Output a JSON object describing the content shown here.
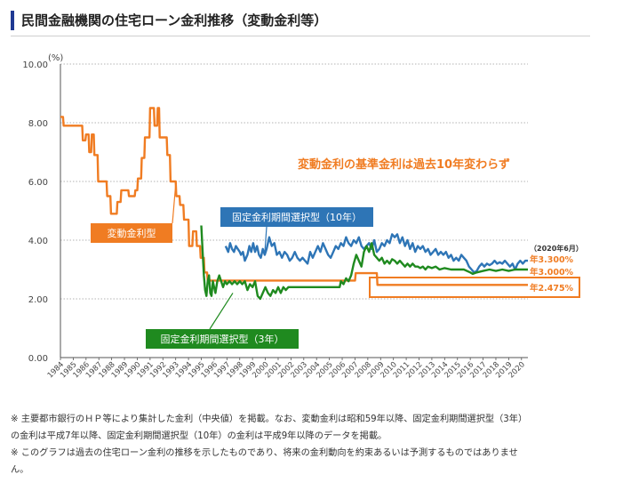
{
  "header": {
    "title": "民間金融機関の住宅ローン金利推移（変動金利等）"
  },
  "notes": [
    "※ 主要都市銀行のＨＰ等により集計した金利（中央値）を掲載。なお、変動金利は昭和59年以降、固定金利期間選択型（3年）",
    "の金利は平成7年以降、固定金利期間選択型（10年）の金利は平成9年以降のデータを掲載。",
    "※ このグラフは過去の住宅ローン金利の推移を示したものであり、将来の金利動向を約束あるいは予測するものではありませ",
    "ん。"
  ],
  "colors": {
    "variable": "#f07c22",
    "fixed10": "#2e75b6",
    "fixed3": "#1f8a1f",
    "grid": "#9a9a9a",
    "header_bar": "#1f3a93"
  },
  "chart_data": {
    "type": "line",
    "unit": "(%)",
    "ylim": [
      0,
      10
    ],
    "yticks": [
      "0.00",
      "2.00",
      "4.00",
      "6.00",
      "8.00",
      "10.00"
    ],
    "xlim": [
      1984,
      2020.5
    ],
    "xticks": [
      "1984",
      "1985",
      "1986",
      "1987",
      "1988",
      "1989",
      "1990",
      "1991",
      "1992",
      "1993",
      "1994",
      "1995",
      "1996",
      "1997",
      "1998",
      "1999",
      "2000",
      "2001",
      "2002",
      "2003",
      "2004",
      "2005",
      "2006",
      "2007",
      "2008",
      "2009",
      "2010",
      "2011",
      "2012",
      "2013",
      "2014",
      "2015",
      "2016",
      "2017",
      "2018",
      "2019",
      "2020"
    ],
    "annotation": "変動金利の基準金利は過去10年変わらず",
    "date_label": "（2020年6月）",
    "series": [
      {
        "name": "変動金利型",
        "end_label": "年2.475%",
        "points": [
          [
            1984.0,
            8.2
          ],
          [
            1984.2,
            8.2
          ],
          [
            1984.25,
            7.9
          ],
          [
            1985.7,
            7.9
          ],
          [
            1985.75,
            7.4
          ],
          [
            1985.95,
            7.4
          ],
          [
            1986.0,
            7.6
          ],
          [
            1986.2,
            7.6
          ],
          [
            1986.25,
            7.0
          ],
          [
            1986.4,
            7.0
          ],
          [
            1986.45,
            7.6
          ],
          [
            1986.6,
            7.6
          ],
          [
            1986.65,
            6.9
          ],
          [
            1986.9,
            6.9
          ],
          [
            1986.95,
            6.0
          ],
          [
            1987.3,
            6.0
          ],
          [
            1987.35,
            6.0
          ],
          [
            1987.6,
            6.0
          ],
          [
            1987.65,
            5.5
          ],
          [
            1987.9,
            5.5
          ],
          [
            1987.95,
            4.9
          ],
          [
            1988.4,
            4.9
          ],
          [
            1988.45,
            5.3
          ],
          [
            1988.7,
            5.3
          ],
          [
            1988.75,
            5.7
          ],
          [
            1989.3,
            5.7
          ],
          [
            1989.35,
            5.5
          ],
          [
            1989.8,
            5.5
          ],
          [
            1989.85,
            5.7
          ],
          [
            1990.0,
            5.7
          ],
          [
            1990.05,
            6.1
          ],
          [
            1990.3,
            6.1
          ],
          [
            1990.35,
            6.8
          ],
          [
            1990.55,
            6.8
          ],
          [
            1990.6,
            7.5
          ],
          [
            1990.95,
            7.5
          ],
          [
            1991.0,
            8.5
          ],
          [
            1991.3,
            8.5
          ],
          [
            1991.35,
            7.9
          ],
          [
            1991.55,
            7.9
          ],
          [
            1991.6,
            8.5
          ],
          [
            1991.7,
            8.5
          ],
          [
            1991.75,
            7.5
          ],
          [
            1992.3,
            7.5
          ],
          [
            1992.35,
            6.9
          ],
          [
            1992.55,
            6.9
          ],
          [
            1992.6,
            6.0
          ],
          [
            1993.0,
            6.0
          ],
          [
            1993.05,
            5.5
          ],
          [
            1993.3,
            5.5
          ],
          [
            1993.35,
            5.2
          ],
          [
            1993.6,
            5.2
          ],
          [
            1993.65,
            4.7
          ],
          [
            1994.0,
            4.7
          ],
          [
            1994.05,
            3.8
          ],
          [
            1994.3,
            3.8
          ],
          [
            1994.35,
            4.3
          ],
          [
            1994.6,
            4.3
          ],
          [
            1994.65,
            3.8
          ],
          [
            1994.9,
            3.8
          ],
          [
            1994.95,
            3.4
          ],
          [
            1995.2,
            3.4
          ],
          [
            1995.25,
            2.9
          ],
          [
            1995.45,
            2.9
          ],
          [
            1995.5,
            2.625
          ],
          [
            2007.0,
            2.625
          ],
          [
            2007.05,
            2.875
          ],
          [
            2008.7,
            2.875
          ],
          [
            2008.75,
            2.475
          ],
          [
            2020.5,
            2.475
          ]
        ]
      },
      {
        "name": "固定金利期間選択型（10年）",
        "end_label": "年3.300%",
        "points": [
          [
            1996.9,
            3.8
          ],
          [
            1997.0,
            3.7
          ],
          [
            1997.1,
            3.6
          ],
          [
            1997.25,
            3.9
          ],
          [
            1997.4,
            3.7
          ],
          [
            1997.55,
            3.6
          ],
          [
            1997.7,
            3.8
          ],
          [
            1997.85,
            3.7
          ],
          [
            1998.0,
            3.6
          ],
          [
            1998.1,
            3.5
          ],
          [
            1998.25,
            3.6
          ],
          [
            1998.4,
            3.3
          ],
          [
            1998.6,
            3.5
          ],
          [
            1998.75,
            3.8
          ],
          [
            1998.9,
            3.6
          ],
          [
            1999.05,
            3.9
          ],
          [
            1999.2,
            3.6
          ],
          [
            1999.35,
            3.8
          ],
          [
            1999.5,
            3.5
          ],
          [
            1999.65,
            3.4
          ],
          [
            1999.8,
            3.7
          ],
          [
            1999.95,
            3.5
          ],
          [
            2000.1,
            3.7
          ],
          [
            2000.3,
            4.1
          ],
          [
            2000.5,
            3.8
          ],
          [
            2000.7,
            3.9
          ],
          [
            2000.9,
            3.5
          ],
          [
            2001.1,
            3.6
          ],
          [
            2001.3,
            3.4
          ],
          [
            2001.5,
            3.6
          ],
          [
            2001.7,
            3.5
          ],
          [
            2001.9,
            3.3
          ],
          [
            2002.1,
            3.4
          ],
          [
            2002.3,
            3.6
          ],
          [
            2002.5,
            3.4
          ],
          [
            2002.7,
            3.3
          ],
          [
            2002.9,
            3.4
          ],
          [
            2003.1,
            3.3
          ],
          [
            2003.3,
            3.2
          ],
          [
            2003.5,
            3.6
          ],
          [
            2003.7,
            3.4
          ],
          [
            2003.9,
            3.6
          ],
          [
            2004.1,
            3.8
          ],
          [
            2004.3,
            3.6
          ],
          [
            2004.5,
            3.9
          ],
          [
            2004.7,
            3.7
          ],
          [
            2004.9,
            3.5
          ],
          [
            2005.1,
            3.4
          ],
          [
            2005.3,
            3.6
          ],
          [
            2005.5,
            3.8
          ],
          [
            2005.7,
            3.7
          ],
          [
            2005.9,
            3.9
          ],
          [
            2006.1,
            3.8
          ],
          [
            2006.3,
            4.1
          ],
          [
            2006.5,
            3.9
          ],
          [
            2006.7,
            3.8
          ],
          [
            2006.9,
            4.0
          ],
          [
            2007.1,
            3.9
          ],
          [
            2007.3,
            4.1
          ],
          [
            2007.5,
            3.8
          ],
          [
            2007.7,
            3.7
          ],
          [
            2007.9,
            3.8
          ],
          [
            2008.1,
            3.9
          ],
          [
            2008.3,
            3.7
          ],
          [
            2008.5,
            4.0
          ],
          [
            2008.7,
            3.6
          ],
          [
            2008.9,
            3.7
          ],
          [
            2009.1,
            3.9
          ],
          [
            2009.3,
            3.8
          ],
          [
            2009.5,
            4.0
          ],
          [
            2009.7,
            3.9
          ],
          [
            2009.9,
            4.2
          ],
          [
            2010.1,
            4.1
          ],
          [
            2010.3,
            4.2
          ],
          [
            2010.5,
            3.9
          ],
          [
            2010.7,
            4.1
          ],
          [
            2010.9,
            3.8
          ],
          [
            2011.1,
            4.0
          ],
          [
            2011.3,
            3.7
          ],
          [
            2011.5,
            3.9
          ],
          [
            2011.7,
            3.6
          ],
          [
            2011.9,
            3.8
          ],
          [
            2012.1,
            3.7
          ],
          [
            2012.3,
            3.8
          ],
          [
            2012.5,
            3.6
          ],
          [
            2012.7,
            3.7
          ],
          [
            2012.9,
            3.5
          ],
          [
            2013.1,
            3.6
          ],
          [
            2013.3,
            3.7
          ],
          [
            2013.5,
            3.5
          ],
          [
            2013.7,
            3.6
          ],
          [
            2013.9,
            3.5
          ],
          [
            2014.1,
            3.6
          ],
          [
            2014.3,
            3.4
          ],
          [
            2014.5,
            3.5
          ],
          [
            2014.7,
            3.3
          ],
          [
            2014.9,
            3.4
          ],
          [
            2015.1,
            3.3
          ],
          [
            2015.3,
            3.5
          ],
          [
            2015.5,
            3.4
          ],
          [
            2015.7,
            3.3
          ],
          [
            2015.9,
            3.1
          ],
          [
            2016.1,
            3.0
          ],
          [
            2016.3,
            2.9
          ],
          [
            2016.5,
            2.95
          ],
          [
            2016.7,
            3.1
          ],
          [
            2016.9,
            3.2
          ],
          [
            2017.1,
            3.1
          ],
          [
            2017.3,
            3.2
          ],
          [
            2017.5,
            3.15
          ],
          [
            2017.7,
            3.2
          ],
          [
            2017.9,
            3.3
          ],
          [
            2018.1,
            3.2
          ],
          [
            2018.3,
            3.25
          ],
          [
            2018.5,
            3.2
          ],
          [
            2018.7,
            3.3
          ],
          [
            2018.9,
            3.2
          ],
          [
            2019.1,
            3.1
          ],
          [
            2019.3,
            3.2
          ],
          [
            2019.5,
            3.0
          ],
          [
            2019.7,
            3.2
          ],
          [
            2019.9,
            3.3
          ],
          [
            2020.1,
            3.2
          ],
          [
            2020.3,
            3.3
          ],
          [
            2020.5,
            3.3
          ]
        ]
      },
      {
        "name": "固定金利期間選択型（3年）",
        "end_label": "年3.000%",
        "points": [
          [
            1995.0,
            4.5
          ],
          [
            1995.1,
            3.6
          ],
          [
            1995.2,
            2.8
          ],
          [
            1995.3,
            2.3
          ],
          [
            1995.4,
            2.1
          ],
          [
            1995.5,
            2.6
          ],
          [
            1995.6,
            2.8
          ],
          [
            1995.7,
            2.2
          ],
          [
            1995.8,
            2.1
          ],
          [
            1995.9,
            2.6
          ],
          [
            1996.0,
            2.4
          ],
          [
            1996.1,
            2.2
          ],
          [
            1996.25,
            2.6
          ],
          [
            1996.4,
            2.8
          ],
          [
            1996.55,
            2.6
          ],
          [
            1996.7,
            2.4
          ],
          [
            1996.85,
            2.6
          ],
          [
            1997.0,
            2.5
          ],
          [
            1997.2,
            2.6
          ],
          [
            1997.4,
            2.5
          ],
          [
            1997.6,
            2.6
          ],
          [
            1997.8,
            2.5
          ],
          [
            1998.0,
            2.6
          ],
          [
            1998.2,
            2.5
          ],
          [
            1998.4,
            2.6
          ],
          [
            1998.6,
            2.3
          ],
          [
            1998.8,
            2.5
          ],
          [
            1999.0,
            2.4
          ],
          [
            1999.2,
            2.6
          ],
          [
            1999.4,
            2.1
          ],
          [
            1999.6,
            2.0
          ],
          [
            1999.8,
            2.2
          ],
          [
            2000.0,
            2.4
          ],
          [
            2000.2,
            2.2
          ],
          [
            2000.4,
            2.1
          ],
          [
            2000.6,
            2.3
          ],
          [
            2000.8,
            2.2
          ],
          [
            2001.0,
            2.4
          ],
          [
            2001.2,
            2.2
          ],
          [
            2001.4,
            2.4
          ],
          [
            2001.6,
            2.3
          ],
          [
            2001.8,
            2.4
          ],
          [
            2002.0,
            2.4
          ],
          [
            2005.8,
            2.4
          ],
          [
            2005.9,
            2.6
          ],
          [
            2006.1,
            2.5
          ],
          [
            2006.3,
            2.7
          ],
          [
            2006.5,
            2.6
          ],
          [
            2006.7,
            2.8
          ],
          [
            2006.9,
            3.2
          ],
          [
            2007.1,
            3.5
          ],
          [
            2007.3,
            3.3
          ],
          [
            2007.5,
            3.1
          ],
          [
            2007.7,
            3.6
          ],
          [
            2007.9,
            3.8
          ],
          [
            2008.1,
            3.6
          ],
          [
            2008.3,
            3.9
          ],
          [
            2008.5,
            3.5
          ],
          [
            2008.7,
            3.4
          ],
          [
            2008.9,
            3.3
          ],
          [
            2009.1,
            3.4
          ],
          [
            2009.3,
            3.2
          ],
          [
            2009.5,
            3.3
          ],
          [
            2009.7,
            3.2
          ],
          [
            2009.9,
            3.35
          ],
          [
            2010.1,
            3.3
          ],
          [
            2010.3,
            3.2
          ],
          [
            2010.5,
            3.3
          ],
          [
            2010.7,
            3.2
          ],
          [
            2010.9,
            3.1
          ],
          [
            2011.1,
            3.2
          ],
          [
            2011.3,
            3.1
          ],
          [
            2011.5,
            3.2
          ],
          [
            2011.7,
            3.1
          ],
          [
            2011.9,
            3.1
          ],
          [
            2012.1,
            3.05
          ],
          [
            2012.3,
            3.1
          ],
          [
            2012.5,
            3.0
          ],
          [
            2012.7,
            3.1
          ],
          [
            2013.0,
            3.05
          ],
          [
            2013.3,
            3.1
          ],
          [
            2013.6,
            3.0
          ],
          [
            2014.0,
            3.05
          ],
          [
            2014.5,
            3.0
          ],
          [
            2015.0,
            3.0
          ],
          [
            2015.5,
            3.0
          ],
          [
            2016.0,
            2.9
          ],
          [
            2016.2,
            2.85
          ],
          [
            2016.5,
            2.9
          ],
          [
            2017.0,
            2.95
          ],
          [
            2017.5,
            3.0
          ],
          [
            2018.0,
            2.95
          ],
          [
            2018.5,
            3.0
          ],
          [
            2019.0,
            2.95
          ],
          [
            2019.5,
            3.0
          ],
          [
            2020.0,
            3.0
          ],
          [
            2020.5,
            3.0
          ]
        ]
      }
    ]
  }
}
